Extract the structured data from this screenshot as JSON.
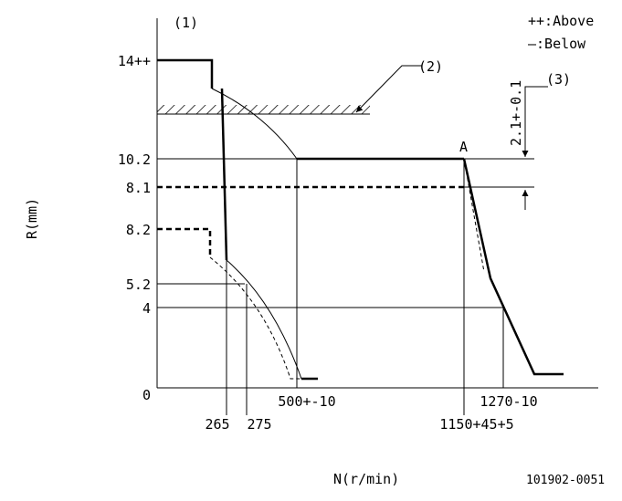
{
  "labels": {
    "ref1": "(1)",
    "ref2": "(2)",
    "ref3": "(3)",
    "legend_above": "++:Above",
    "legend_below": "—:Below",
    "point_a": "A",
    "y_axis": "R(mm)",
    "x_axis": "N(r/min)",
    "drawing_no": "101902-0051",
    "dim_3": "2.1+-0.1"
  },
  "y_labels": [
    "14++",
    "10.2",
    "8.1",
    "8.2",
    "5.2",
    "4",
    "0"
  ],
  "x_labels": [
    "265",
    "275",
    "500+-10",
    "1150+45+5",
    "1270-10"
  ]
}
